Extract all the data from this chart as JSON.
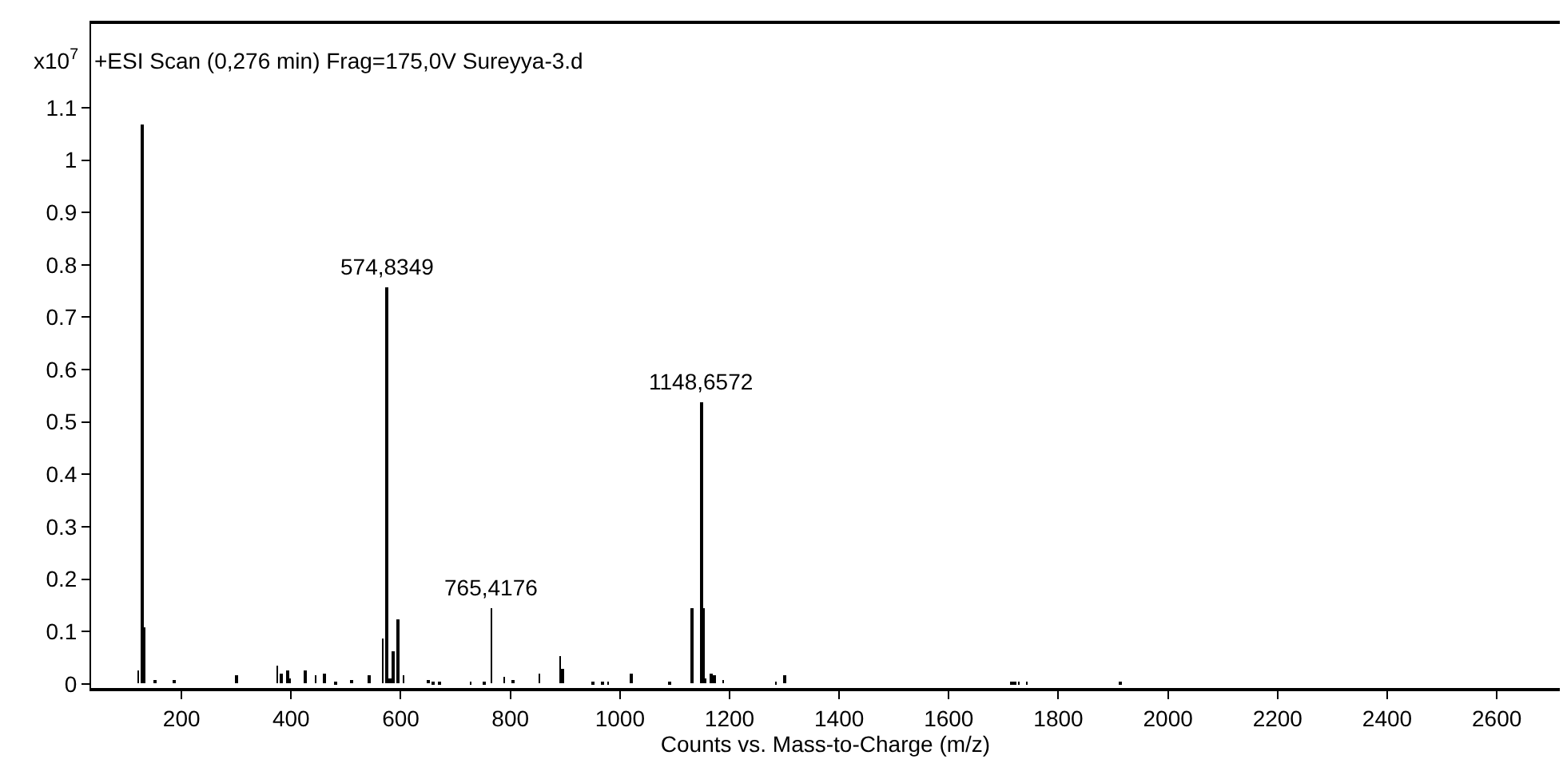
{
  "chart_data": {
    "type": "bar",
    "title": "+ESI Scan (0,276 min) Frag=175,0V Sureyya-3.d",
    "xlabel": "Counts vs. Mass-to-Charge (m/z)",
    "ylabel": "x10$^{7}$",
    "x": [
      121,
      128,
      132,
      152,
      187,
      301,
      375,
      383,
      394,
      398,
      425,
      445,
      461,
      482,
      511,
      543,
      567,
      574.8349,
      581,
      586,
      594,
      605,
      651,
      660,
      670,
      728,
      753,
      765.4176,
      789,
      805,
      853,
      891,
      895,
      950,
      968,
      978,
      1020,
      1091,
      1132,
      1148.6572,
      1151,
      1156,
      1167,
      1172,
      1188,
      1285,
      1300,
      1714,
      1721,
      1728,
      1742,
      1913
    ],
    "values": [
      0.025,
      1.067,
      0.108,
      0.008,
      0.008,
      0.015,
      0.036,
      0.02,
      0.025,
      0.01,
      0.025,
      0.016,
      0.02,
      0.005,
      0.008,
      0.015,
      0.085,
      0.757,
      0.01,
      0.063,
      0.124,
      0.015,
      0.007,
      0.005,
      0.005,
      0.004,
      0.005,
      0.145,
      0.014,
      0.008,
      0.02,
      0.053,
      0.028,
      0.005,
      0.005,
      0.004,
      0.02,
      0.005,
      0.145,
      0.538,
      0.145,
      0.01,
      0.02,
      0.015,
      0.008,
      0.005,
      0.015,
      0.004,
      0.004,
      0.004,
      0.004,
      0.004
    ],
    "color": "#000000",
    "xlim": [
      35,
      2715
    ],
    "ylim": [
      -0.008,
      1.26
    ],
    "xticks": [
      200,
      400,
      600,
      800,
      1000,
      1200,
      1400,
      1600,
      1800,
      2000,
      2200,
      2400,
      2600
    ],
    "yticks": [
      0,
      0.1,
      0.2,
      0.3,
      0.4,
      0.5,
      0.6,
      0.7,
      0.8,
      0.9,
      1,
      1.1
    ],
    "annotations": [
      {
        "text": "574,8349",
        "x": 574.8349,
        "y": 0.757
      },
      {
        "text": "765,4176",
        "x": 765.4176,
        "y": 0.145
      },
      {
        "text": "1148,6572",
        "x": 1148.6572,
        "y": 0.538
      }
    ]
  }
}
